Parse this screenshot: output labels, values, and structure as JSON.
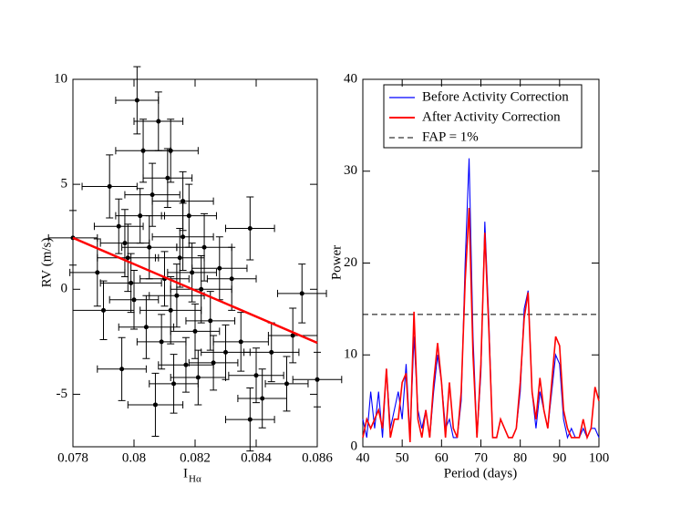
{
  "chart_data": [
    {
      "type": "scatter",
      "x_label": "I",
      "x_label_subscript": "Hα",
      "y_label": "RV (m/s)",
      "xlim": [
        0.078,
        0.086
      ],
      "xticks": [
        0.078,
        0.08,
        0.082,
        0.084,
        0.086
      ],
      "ylim": [
        -7.5,
        10
      ],
      "yticks": [
        -5,
        0,
        5,
        10
      ],
      "color": "#000000",
      "x": [
        0.078,
        0.0792,
        0.0801,
        0.0808,
        0.0803,
        0.0795,
        0.0798,
        0.08,
        0.0805,
        0.081,
        0.0812,
        0.0815,
        0.0818,
        0.082,
        0.0822,
        0.0825,
        0.0828,
        0.083,
        0.0835,
        0.0838,
        0.084,
        0.0842,
        0.0838,
        0.085,
        0.0855,
        0.086,
        0.0807,
        0.0813,
        0.0817,
        0.0796,
        0.079,
        0.0788,
        0.0802,
        0.0806,
        0.0811,
        0.0816,
        0.0809,
        0.0814,
        0.0819,
        0.0823,
        0.0826,
        0.0804,
        0.0799,
        0.0797,
        0.0821,
        0.0832,
        0.0845,
        0.0852,
        0.0812,
        0.0816
      ],
      "y": [
        2.45,
        4.9,
        9.0,
        8.0,
        6.6,
        3.0,
        1.5,
        -0.5,
        2.0,
        0.5,
        -1.0,
        1.5,
        3.5,
        -2.0,
        0.0,
        -1.5,
        1.0,
        -3.0,
        -2.5,
        2.9,
        -4.1,
        -5.2,
        -6.2,
        -4.5,
        -0.2,
        -4.3,
        -5.5,
        -4.5,
        -3.6,
        -3.8,
        -1.0,
        0.8,
        3.5,
        4.5,
        5.3,
        2.5,
        -2.5,
        -0.3,
        0.8,
        2.0,
        -3.5,
        -1.8,
        0.3,
        2.2,
        -4.2,
        0.5,
        -3.0,
        -2.2,
        6.6,
        4.2
      ],
      "xerr": [
        0.0008,
        0.0009,
        0.0007,
        0.0008,
        0.0009,
        0.0008,
        0.001,
        0.0008,
        0.0009,
        0.0008,
        0.001,
        0.0008,
        0.0009,
        0.0008,
        0.001,
        0.0008,
        0.0009,
        0.0008,
        0.0009,
        0.0008,
        0.0009,
        0.0008,
        0.0008,
        0.0007,
        0.0008,
        0.0008,
        0.0009,
        0.0008,
        0.0009,
        0.0008,
        0.001,
        0.0009,
        0.0008,
        0.0009,
        0.0008,
        0.001,
        0.0008,
        0.0009,
        0.0008,
        0.0009,
        0.0008,
        0.0009,
        0.001,
        0.0008,
        0.0009,
        0.0008,
        0.0009,
        0.0008,
        0.0009,
        0.001
      ],
      "yerr": [
        1.3,
        1.5,
        1.6,
        1.4,
        1.5,
        1.3,
        1.6,
        1.4,
        1.5,
        1.3,
        1.6,
        1.4,
        1.5,
        1.3,
        1.6,
        1.4,
        1.5,
        1.3,
        1.4,
        1.5,
        1.3,
        1.4,
        1.5,
        1.3,
        1.4,
        1.3,
        1.5,
        1.4,
        1.3,
        1.5,
        1.4,
        1.6,
        1.3,
        1.5,
        1.4,
        1.6,
        1.3,
        1.5,
        1.4,
        1.6,
        1.3,
        1.5,
        1.4,
        1.6,
        1.3,
        1.5,
        1.4,
        1.3,
        1.5,
        1.4
      ],
      "fit": {
        "color": "#ff0000",
        "x": [
          0.078,
          0.086
        ],
        "y": [
          2.45,
          -2.55
        ]
      }
    },
    {
      "type": "line",
      "x_label": "Period (days)",
      "y_label": "Power",
      "xlim": [
        40,
        100
      ],
      "xticks": [
        40,
        50,
        60,
        70,
        80,
        90,
        100
      ],
      "ylim": [
        0,
        40
      ],
      "yticks": [
        0,
        10,
        20,
        30,
        40
      ],
      "legend": "upper",
      "x": [
        40,
        41,
        42,
        43,
        44,
        45,
        46,
        47,
        48,
        49,
        50,
        51,
        52,
        53,
        54,
        55,
        56,
        57,
        58,
        59,
        60,
        61,
        62,
        63,
        64,
        65,
        66,
        67,
        68,
        69,
        70,
        71,
        72,
        73,
        74,
        75,
        76,
        77,
        78,
        79,
        80,
        81,
        82,
        83,
        84,
        85,
        86,
        87,
        88,
        89,
        90,
        91,
        92,
        93,
        94,
        95,
        96,
        97,
        98,
        99,
        100
      ],
      "series": [
        {
          "name": "Before Activity Correction",
          "color": "#0000ff",
          "values": [
            3,
            1,
            6,
            2,
            6,
            1,
            8.5,
            2,
            4,
            6,
            3,
            9,
            1,
            12,
            4,
            2,
            4,
            1,
            6,
            10,
            7,
            2,
            3,
            1,
            1,
            5,
            20,
            31.4,
            12,
            1,
            8,
            24.5,
            14,
            1,
            1,
            3,
            2,
            1,
            1,
            2,
            6,
            15,
            17,
            6,
            2,
            6,
            4,
            2,
            6,
            10,
            9,
            3,
            1,
            2,
            1,
            1,
            2,
            1,
            2,
            2,
            1
          ]
        },
        {
          "name": "After Activity Correction",
          "color": "#ff0000",
          "values": [
            1,
            3,
            2,
            3,
            4,
            2,
            8.5,
            1,
            3,
            3,
            7,
            8,
            0.5,
            14.7,
            3,
            1,
            4,
            1,
            7,
            11.3,
            7,
            1,
            7,
            2,
            1,
            6,
            18,
            26,
            10,
            1,
            9,
            23.3,
            13,
            1,
            1,
            3,
            2,
            1,
            1,
            2,
            7,
            14,
            16.8,
            6,
            3,
            7.5,
            4,
            2,
            7,
            12,
            11,
            4,
            2,
            1,
            1,
            1,
            3,
            1,
            2,
            6.5,
            5
          ]
        }
      ],
      "fap": {
        "name": "FAP = 1%",
        "value": 14.4,
        "color": "#000000"
      }
    }
  ]
}
